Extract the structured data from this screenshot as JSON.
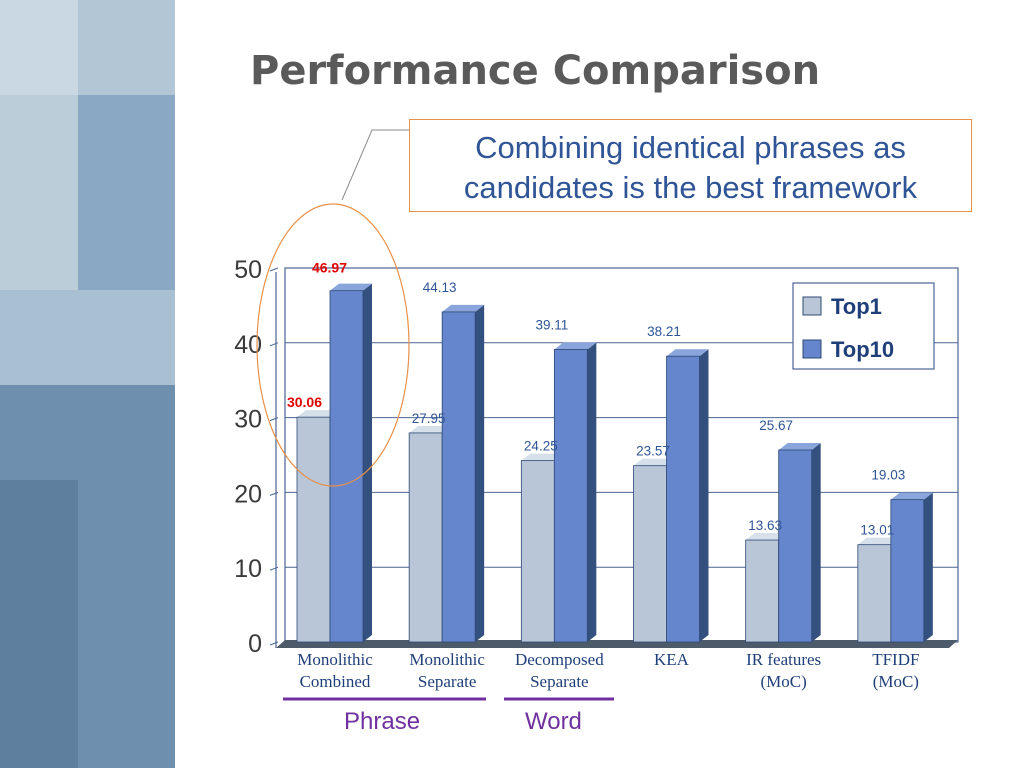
{
  "slide": {
    "title": "Performance Comparison",
    "callout": {
      "line1": "Combining identical phrases as",
      "line2": "candidates is the best framework"
    },
    "groups": [
      {
        "label": "Phrase",
        "color": "#7030a0"
      },
      {
        "label": "Word",
        "color": "#7030a0"
      }
    ]
  },
  "colors": {
    "top1": "#b8c6d8",
    "top10": "#6585cc",
    "highlight_label": "#e00000",
    "value_label": "#2f5597",
    "callout_border": "#e8914a"
  },
  "chart_data": {
    "type": "bar",
    "title": "",
    "xlabel": "",
    "ylabel": "",
    "ylim": [
      0,
      50
    ],
    "yticks": [
      0,
      10,
      20,
      30,
      40,
      50
    ],
    "categories": [
      [
        "Monolithic",
        "Combined"
      ],
      [
        "Monolithic",
        "Separate"
      ],
      [
        "Decomposed",
        "Separate"
      ],
      [
        "KEA",
        ""
      ],
      [
        "IR features",
        "(MoC)"
      ],
      [
        "TFIDF",
        "(MoC)"
      ]
    ],
    "series": [
      {
        "name": "Top1",
        "values": [
          30.06,
          27.95,
          24.25,
          23.57,
          13.63,
          13.01
        ]
      },
      {
        "name": "Top10",
        "values": [
          46.97,
          44.13,
          39.11,
          38.21,
          25.67,
          19.03
        ]
      }
    ],
    "highlight_category_index": 0,
    "legend_position": "top-right",
    "grid": true
  }
}
